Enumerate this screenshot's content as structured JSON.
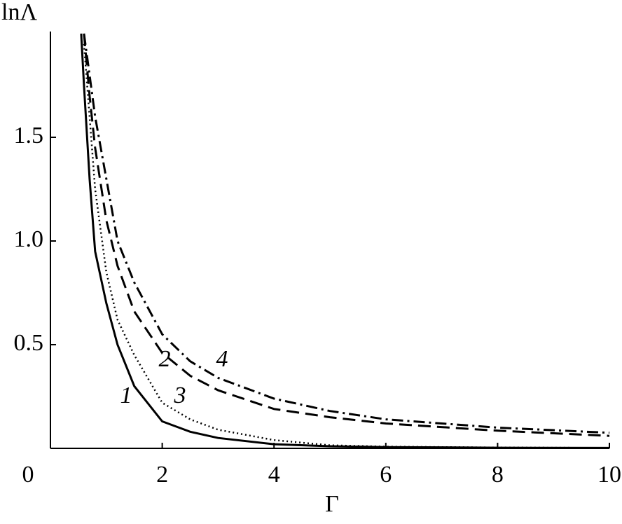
{
  "chart_data": {
    "type": "line",
    "y_label": "lnΛ",
    "x_label": "Γ",
    "x": [
      0.55,
      0.6,
      0.7,
      0.8,
      1,
      1.2,
      1.5,
      2,
      2.5,
      3,
      4,
      5,
      6,
      8,
      10
    ],
    "series": [
      {
        "name": "1",
        "color": "#000000",
        "dash": "solid",
        "values": [
          2.0,
          1.75,
          1.3,
          0.95,
          0.7,
          0.5,
          0.3,
          0.13,
          0.08,
          0.05,
          0.02,
          0.01,
          0.006,
          0.003,
          0.002
        ]
      },
      {
        "name": "2",
        "color": "#000000",
        "dash": "dashed",
        "values": [
          null,
          2.0,
          1.7,
          1.45,
          1.1,
          0.88,
          0.66,
          0.46,
          0.35,
          0.28,
          0.19,
          0.15,
          0.12,
          0.085,
          0.06
        ]
      },
      {
        "name": "3",
        "color": "#000000",
        "dash": "dotted",
        "values": [
          null,
          1.95,
          1.6,
          1.25,
          0.85,
          0.62,
          0.45,
          0.22,
          0.14,
          0.09,
          0.04,
          0.015,
          0.008,
          0.004,
          0.002
        ]
      },
      {
        "name": "4",
        "color": "#000000",
        "dash": "dashdot",
        "values": [
          null,
          2.0,
          1.8,
          1.6,
          1.3,
          1.0,
          0.8,
          0.55,
          0.42,
          0.34,
          0.24,
          0.18,
          0.14,
          0.1,
          0.075
        ]
      }
    ],
    "xlim": [
      0,
      10
    ],
    "ylim": [
      0,
      2.0
    ],
    "xticks": [
      0,
      2,
      4,
      6,
      8,
      10
    ],
    "yticks": [
      0.5,
      {
        "value": 1,
        "label": "1.0"
      },
      1.5
    ],
    "grid": false
  }
}
